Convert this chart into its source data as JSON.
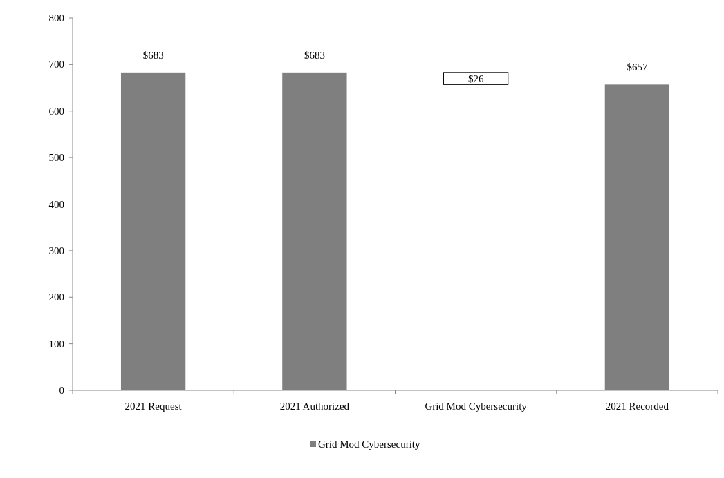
{
  "chart_data": {
    "type": "bar",
    "categories": [
      "2021 Request",
      "2021 Authorized",
      "Grid Mod Cybersecurity",
      "2021 Recorded"
    ],
    "series": [
      {
        "name": "Grid Mod Cybersecurity",
        "color": "#7f7f7f",
        "colors": [
          "#7f7f7f",
          "#7f7f7f",
          "#ffffff",
          "#7f7f7f"
        ],
        "values": [
          683,
          683,
          26,
          657
        ],
        "base": [
          null,
          null,
          657,
          null
        ],
        "value_labels": [
          "$683",
          "$683",
          "$26",
          "$657"
        ]
      }
    ],
    "ylim": [
      0,
      800
    ],
    "yticks": [
      0,
      100,
      200,
      300,
      400,
      500,
      600,
      700,
      800
    ],
    "grid": false,
    "legend": "bottom"
  }
}
